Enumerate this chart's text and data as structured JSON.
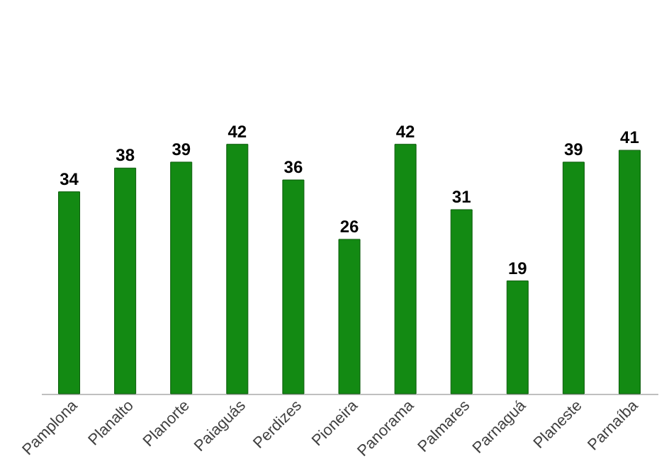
{
  "chart_data": {
    "type": "bar",
    "categories": [
      "Pamplona",
      "Planalto",
      "Planorte",
      "Paiaguás",
      "Perdizes",
      "Pioneira",
      "Panorama",
      "Palmares",
      "Parnaguá",
      "Planeste",
      "Parnaíba"
    ],
    "values": [
      34,
      38,
      39,
      42,
      36,
      26,
      42,
      31,
      19,
      39,
      41
    ],
    "color": "#138a13",
    "data_labels": true,
    "grid": false
  }
}
